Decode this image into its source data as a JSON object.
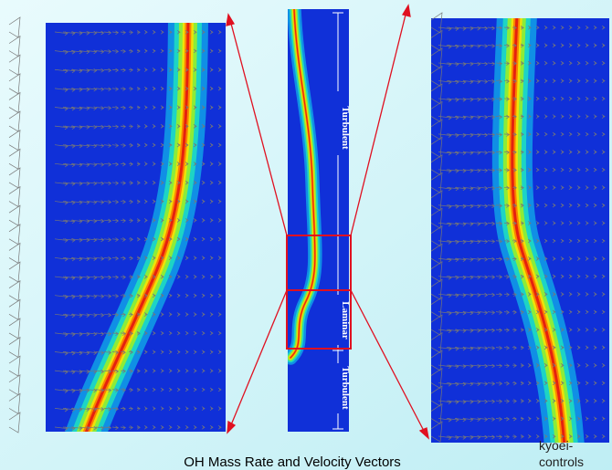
{
  "labels": {
    "upper": "Turbulent",
    "middle": "Laminar",
    "lower": "Turbulent"
  },
  "caption": "OH Mass Rate and Velocity Vectors",
  "watermark": [
    "kyoei-",
    "controls"
  ]
}
